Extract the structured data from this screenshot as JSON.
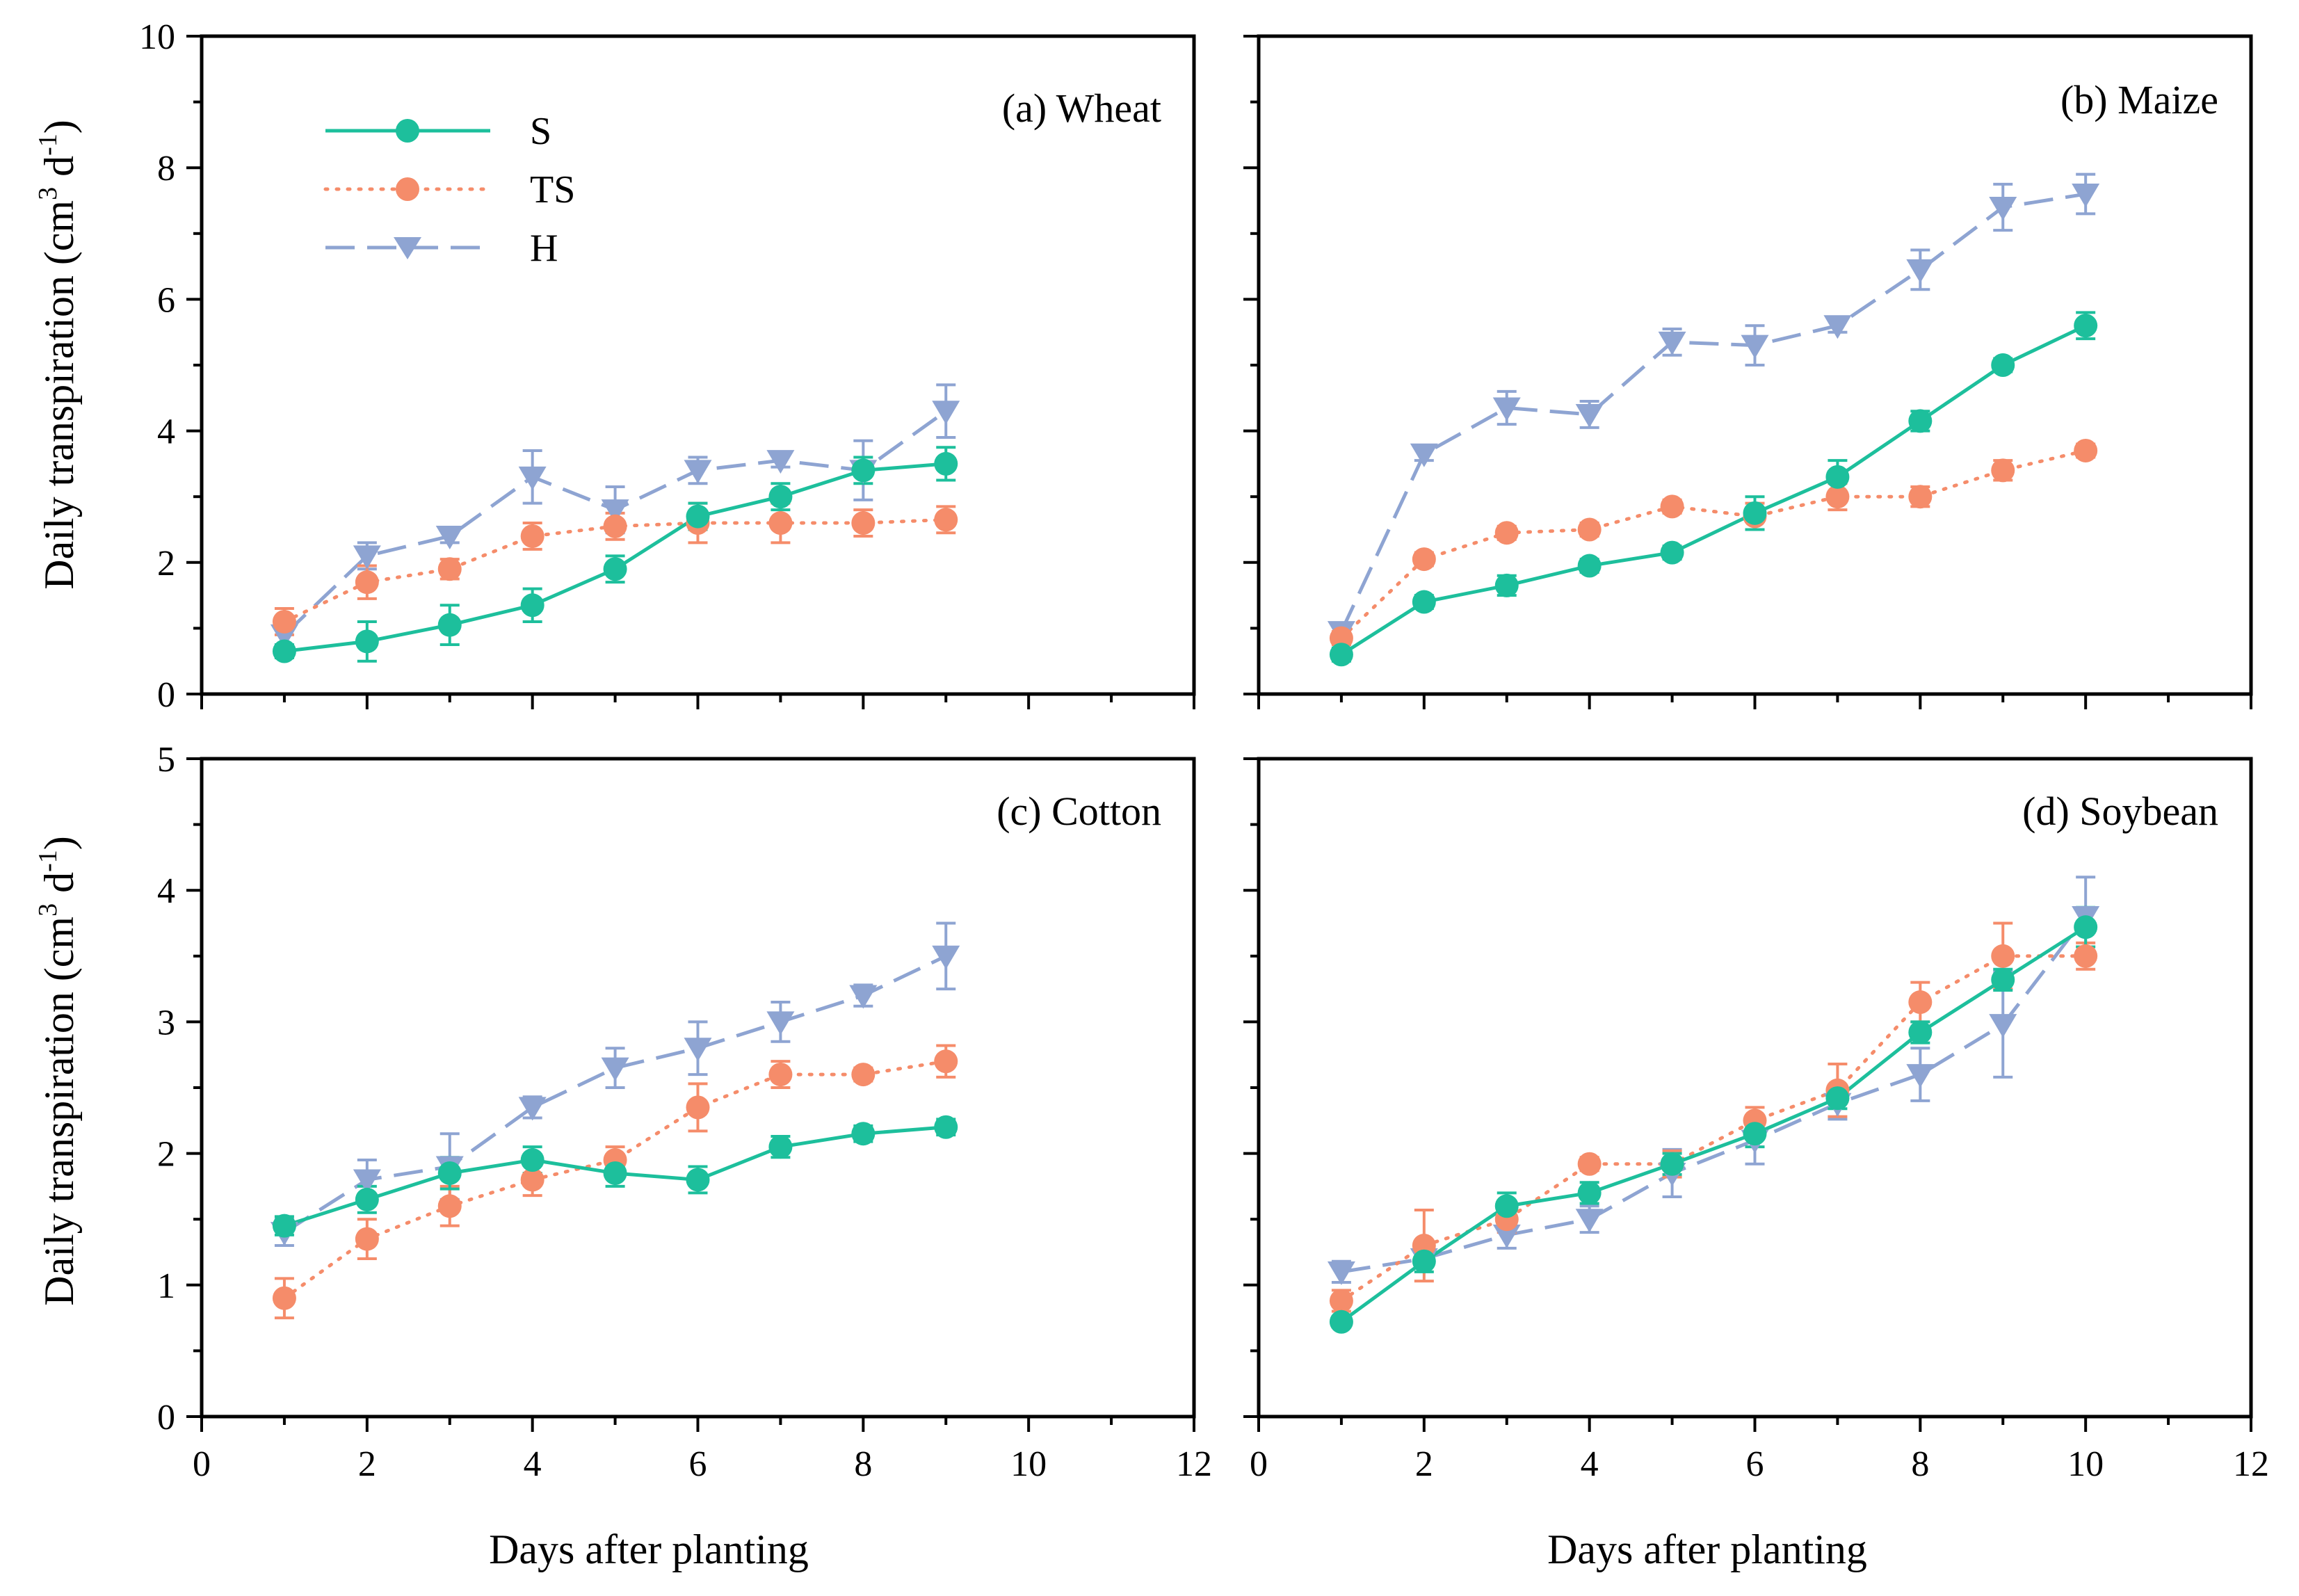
{
  "figure": {
    "ylabel_main": "Daily transpiration (cm",
    "ylabel_sup1": "3",
    "ylabel_mid": " d",
    "ylabel_sup2": "-1",
    "ylabel_end": ")",
    "xlabel": "Days after planting"
  },
  "legend": {
    "items": [
      {
        "label": "S"
      },
      {
        "label": "TS"
      },
      {
        "label": "H"
      }
    ]
  },
  "chart_data": [
    {
      "type": "line",
      "title": "(a) Wheat",
      "xlabel": "Days after planting",
      "ylabel": "Daily transpiration (cm3 d-1)",
      "xlim": [
        0,
        12
      ],
      "ylim": [
        0,
        10
      ],
      "xticks": [
        0,
        2,
        4,
        6,
        8,
        10,
        12
      ],
      "yticks": [
        0,
        2,
        4,
        6,
        8,
        10
      ],
      "legend_position": "top-left",
      "series": [
        {
          "name": "S",
          "color": "#1dbf9c",
          "marker": "circle",
          "x": [
            1,
            2,
            3,
            4,
            5,
            6,
            7,
            8,
            9
          ],
          "values": [
            0.65,
            0.8,
            1.05,
            1.35,
            1.9,
            2.7,
            3.0,
            3.4,
            3.5
          ],
          "err": [
            0.1,
            0.3,
            0.3,
            0.25,
            0.2,
            0.2,
            0.2,
            0.2,
            0.25
          ]
        },
        {
          "name": "TS",
          "color": "#f58c6a",
          "marker": "circle",
          "x": [
            1,
            2,
            3,
            4,
            5,
            6,
            7,
            8,
            9
          ],
          "values": [
            1.1,
            1.7,
            1.9,
            2.4,
            2.55,
            2.6,
            2.6,
            2.6,
            2.65
          ],
          "err": [
            0.2,
            0.25,
            0.15,
            0.2,
            0.2,
            0.3,
            0.3,
            0.2,
            0.2
          ]
        },
        {
          "name": "H",
          "color": "#8ea4d2",
          "marker": "triangle-down",
          "x": [
            1,
            2,
            3,
            4,
            5,
            6,
            7,
            8,
            9
          ],
          "values": [
            0.9,
            2.1,
            2.4,
            3.3,
            2.8,
            3.4,
            3.55,
            3.4,
            4.3
          ],
          "err": [
            0.15,
            0.2,
            0.1,
            0.4,
            0.35,
            0.2,
            0.1,
            0.45,
            0.4
          ]
        }
      ]
    },
    {
      "type": "line",
      "title": "(b) Maize",
      "xlabel": "Days after planting",
      "ylabel": "Daily transpiration (cm3 d-1)",
      "xlim": [
        0,
        12
      ],
      "ylim": [
        0,
        10
      ],
      "xticks": [
        0,
        2,
        4,
        6,
        8,
        10,
        12
      ],
      "yticks": [
        0,
        2,
        4,
        6,
        8,
        10
      ],
      "series": [
        {
          "name": "S",
          "color": "#1dbf9c",
          "marker": "circle",
          "x": [
            1,
            2,
            3,
            4,
            5,
            6,
            7,
            8,
            9,
            10
          ],
          "values": [
            0.6,
            1.4,
            1.65,
            1.95,
            2.15,
            2.75,
            3.3,
            4.15,
            5.0,
            5.6
          ],
          "err": [
            0.1,
            0.1,
            0.15,
            0.1,
            0.1,
            0.25,
            0.25,
            0.15,
            0.1,
            0.2
          ]
        },
        {
          "name": "TS",
          "color": "#f58c6a",
          "marker": "circle",
          "x": [
            1,
            2,
            3,
            4,
            5,
            6,
            7,
            8,
            9,
            10
          ],
          "values": [
            0.85,
            2.05,
            2.45,
            2.5,
            2.85,
            2.7,
            3.0,
            3.0,
            3.4,
            3.7
          ],
          "err": [
            0.1,
            0.1,
            0.1,
            0.1,
            0.1,
            0.2,
            0.2,
            0.15,
            0.15,
            0.1
          ]
        },
        {
          "name": "H",
          "color": "#8ea4d2",
          "marker": "triangle-down",
          "x": [
            1,
            2,
            3,
            4,
            5,
            6,
            7,
            8,
            9,
            10
          ],
          "values": [
            0.95,
            3.65,
            4.35,
            4.25,
            5.35,
            5.3,
            5.6,
            6.45,
            7.4,
            7.6
          ],
          "err": [
            0.1,
            0.1,
            0.25,
            0.2,
            0.2,
            0.3,
            0.1,
            0.3,
            0.35,
            0.3
          ]
        }
      ]
    },
    {
      "type": "line",
      "title": "(c) Cotton",
      "xlabel": "Days after planting",
      "ylabel": "Daily transpiration (cm3 d-1)",
      "xlim": [
        0,
        12
      ],
      "ylim": [
        0,
        5
      ],
      "xticks": [
        0,
        2,
        4,
        6,
        8,
        10,
        12
      ],
      "yticks": [
        0,
        1,
        2,
        3,
        4,
        5
      ],
      "series": [
        {
          "name": "S",
          "color": "#1dbf9c",
          "marker": "circle",
          "x": [
            1,
            2,
            3,
            4,
            5,
            6,
            7,
            8,
            9
          ],
          "values": [
            1.45,
            1.65,
            1.85,
            1.95,
            1.85,
            1.8,
            2.05,
            2.15,
            2.2
          ],
          "err": [
            0.07,
            0.1,
            0.12,
            0.1,
            0.1,
            0.1,
            0.08,
            0.06,
            0.06
          ]
        },
        {
          "name": "TS",
          "color": "#f58c6a",
          "marker": "circle",
          "x": [
            1,
            2,
            3,
            4,
            5,
            6,
            7,
            8,
            9
          ],
          "values": [
            0.9,
            1.35,
            1.6,
            1.8,
            1.95,
            2.35,
            2.6,
            2.6,
            2.7
          ],
          "err": [
            0.15,
            0.15,
            0.15,
            0.12,
            0.1,
            0.18,
            0.1,
            0.05,
            0.12
          ]
        },
        {
          "name": "H",
          "color": "#8ea4d2",
          "marker": "triangle-down",
          "x": [
            1,
            2,
            3,
            4,
            5,
            6,
            7,
            8,
            9
          ],
          "values": [
            1.4,
            1.8,
            1.9,
            2.35,
            2.65,
            2.8,
            3.0,
            3.2,
            3.5
          ],
          "err": [
            0.1,
            0.15,
            0.25,
            0.08,
            0.15,
            0.2,
            0.15,
            0.08,
            0.25
          ]
        }
      ]
    },
    {
      "type": "line",
      "title": "(d) Soybean",
      "xlabel": "Days after planting",
      "ylabel": "Daily transpiration (cm3 d-1)",
      "xlim": [
        0,
        12
      ],
      "ylim": [
        0,
        5
      ],
      "xticks": [
        0,
        2,
        4,
        6,
        8,
        10,
        12
      ],
      "yticks": [
        0,
        1,
        2,
        3,
        4,
        5
      ],
      "series": [
        {
          "name": "S",
          "color": "#1dbf9c",
          "marker": "circle",
          "x": [
            1,
            2,
            3,
            4,
            5,
            6,
            7,
            8,
            9,
            10
          ],
          "values": [
            0.72,
            1.18,
            1.6,
            1.7,
            1.92,
            2.15,
            2.42,
            2.92,
            3.32,
            3.72
          ],
          "err": [
            0.04,
            0.08,
            0.1,
            0.08,
            0.08,
            0.1,
            0.08,
            0.08,
            0.08,
            0.15
          ]
        },
        {
          "name": "TS",
          "color": "#f58c6a",
          "marker": "circle",
          "x": [
            1,
            2,
            3,
            4,
            5,
            6,
            7,
            8,
            9,
            10
          ],
          "values": [
            0.88,
            1.3,
            1.5,
            1.92,
            1.92,
            2.25,
            2.48,
            3.15,
            3.5,
            3.5
          ],
          "err": [
            0.08,
            0.27,
            0.1,
            0.05,
            0.1,
            0.1,
            0.2,
            0.15,
            0.25,
            0.1
          ]
        },
        {
          "name": "H",
          "color": "#8ea4d2",
          "marker": "triangle-down",
          "x": [
            1,
            2,
            3,
            4,
            5,
            6,
            7,
            8,
            9,
            10
          ],
          "values": [
            1.1,
            1.2,
            1.38,
            1.5,
            1.85,
            2.1,
            2.38,
            2.6,
            2.98,
            3.8
          ],
          "err": [
            0.08,
            0.05,
            0.1,
            0.1,
            0.18,
            0.18,
            0.12,
            0.2,
            0.4,
            0.3
          ]
        }
      ]
    }
  ]
}
